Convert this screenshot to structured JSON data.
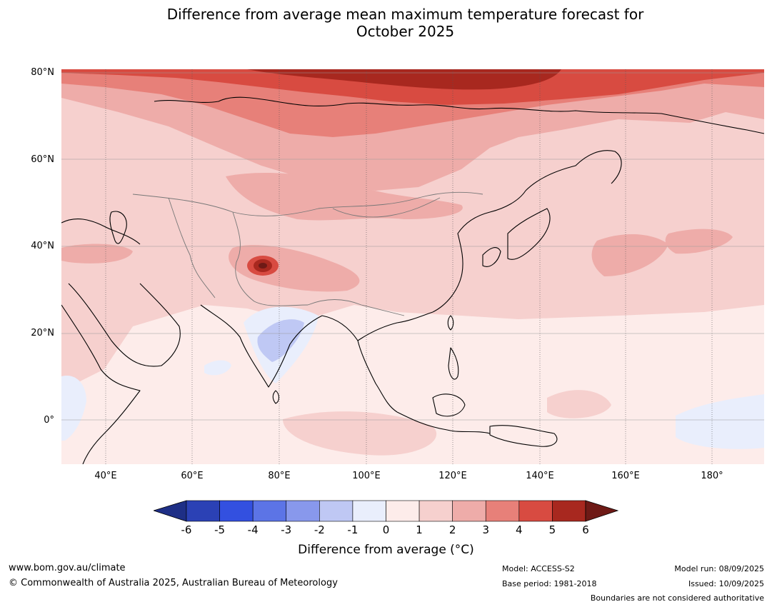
{
  "title_line1": "Difference from average mean maximum temperature forecast for",
  "title_line2": "October 2025",
  "lat_labels": [
    "80°N",
    "60°N",
    "40°N",
    "20°N",
    "0°"
  ],
  "lon_labels": [
    "40°E",
    "60°E",
    "80°E",
    "100°E",
    "120°E",
    "140°E",
    "160°E",
    "180°"
  ],
  "colorbar": {
    "ticks": [
      "-6",
      "-5",
      "-4",
      "-3",
      "-2",
      "-1",
      "0",
      "1",
      "2",
      "3",
      "4",
      "5",
      "6"
    ],
    "colors": [
      "#1e2f86",
      "#2b41b5",
      "#3350e0",
      "#5c74e6",
      "#8898ec",
      "#bfc8f4",
      "#e9eefc",
      "#fdecea",
      "#f6d0ce",
      "#eeaca9",
      "#e78079",
      "#d84b41",
      "#a8281f",
      "#6e1a16"
    ],
    "title": "Difference from average (°C)"
  },
  "footer": {
    "website": "www.bom.gov.au/climate",
    "copyright": "© Commonwealth of Australia 2025, Australian Bureau of Meteorology",
    "model": "Model: ACCESS-S2",
    "base_period": "Base period: 1981-2018",
    "model_run": "Model run: 08/09/2025",
    "issued": "Issued: 10/09/2025",
    "disclaimer": "Boundaries are not considered authoritative"
  }
}
